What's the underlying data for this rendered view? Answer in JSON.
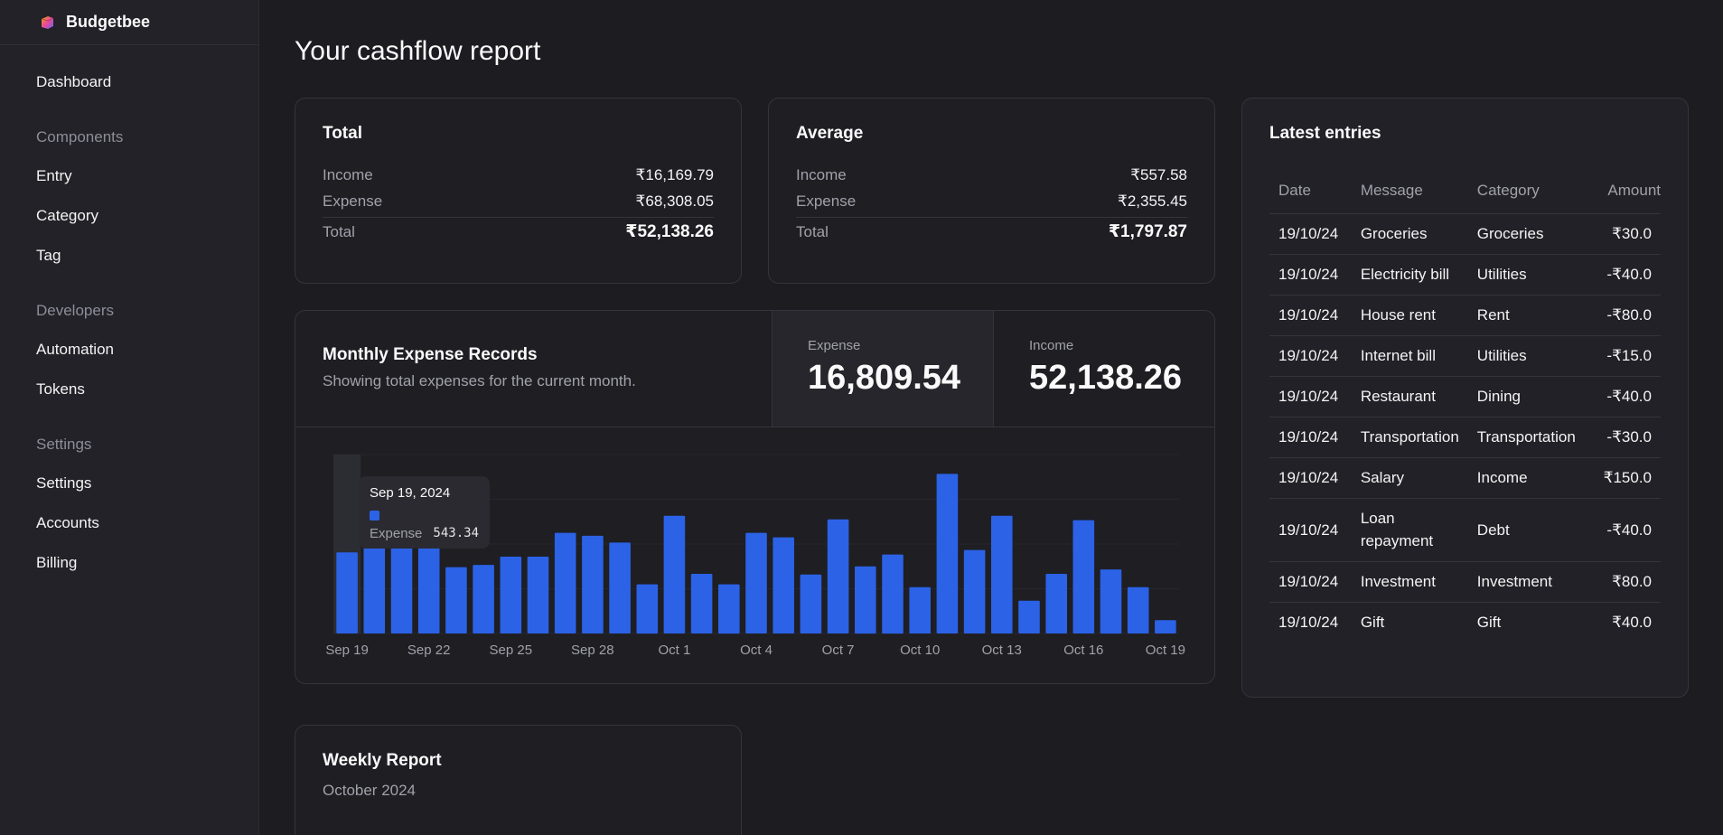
{
  "brand": {
    "name": "Budgetbee"
  },
  "sidebar": {
    "dashboard": "Dashboard",
    "components_heading": "Components",
    "components": [
      "Entry",
      "Category",
      "Tag"
    ],
    "developers_heading": "Developers",
    "developers": [
      "Automation",
      "Tokens"
    ],
    "settings_heading": "Settings",
    "settings": [
      "Settings",
      "Accounts",
      "Billing"
    ]
  },
  "page": {
    "title": "Your cashflow report"
  },
  "total": {
    "title": "Total",
    "income_label": "Income",
    "income": "₹16,169.79",
    "expense_label": "Expense",
    "expense": "₹68,308.05",
    "total_label": "Total",
    "total": "₹52,138.26"
  },
  "average": {
    "title": "Average",
    "income_label": "Income",
    "income": "₹557.58",
    "expense_label": "Expense",
    "expense": "₹2,355.45",
    "total_label": "Total",
    "total": "₹1,797.87"
  },
  "monthly": {
    "title": "Monthly Expense Records",
    "subtitle": "Showing total expenses for the current month.",
    "expense_label": "Expense",
    "expense_value": "16,809.54",
    "income_label": "Income",
    "income_value": "52,138.26",
    "tooltip": {
      "date": "Sep 19, 2024",
      "label": "Expense",
      "value": "543.34"
    }
  },
  "chart_data": {
    "type": "bar",
    "series": [
      {
        "name": "Expense",
        "color": "#2b62e6"
      }
    ],
    "tick_labels": [
      "Sep 19",
      "Sep 22",
      "Sep 25",
      "Sep 28",
      "Oct 1",
      "Oct 4",
      "Oct 7",
      "Oct 10",
      "Oct 13",
      "Oct 16",
      "Oct 19"
    ],
    "x": [
      "Sep 19",
      "Sep 20",
      "Sep 21",
      "Sep 22",
      "Sep 23",
      "Sep 24",
      "Sep 25",
      "Sep 26",
      "Sep 27",
      "Sep 28",
      "Sep 29",
      "Sep 30",
      "Oct 1",
      "Oct 2",
      "Oct 3",
      "Oct 4",
      "Oct 5",
      "Oct 6",
      "Oct 7",
      "Oct 8",
      "Oct 9",
      "Oct 10",
      "Oct 11",
      "Oct 12",
      "Oct 13",
      "Oct 14",
      "Oct 15",
      "Oct 16",
      "Oct 17",
      "Oct 18",
      "Oct 19"
    ],
    "values": [
      543.34,
      585,
      585,
      585,
      445,
      460,
      515,
      515,
      675,
      655,
      610,
      330,
      790,
      400,
      330,
      675,
      645,
      395,
      765,
      450,
      530,
      310,
      1070,
      560,
      790,
      220,
      400,
      760,
      430,
      310,
      90
    ],
    "ylim": [
      0,
      1200
    ],
    "grid": true,
    "highlighted_index": 0
  },
  "latest": {
    "title": "Latest entries",
    "columns": {
      "date": "Date",
      "message": "Message",
      "category": "Category",
      "amount": "Amount"
    },
    "rows": [
      {
        "date": "19/10/24",
        "message": "Groceries",
        "category": "Groceries",
        "amount": "₹30.0"
      },
      {
        "date": "19/10/24",
        "message": "Electricity bill",
        "category": "Utilities",
        "amount": "-₹40.0"
      },
      {
        "date": "19/10/24",
        "message": "House rent",
        "category": "Rent",
        "amount": "-₹80.0"
      },
      {
        "date": "19/10/24",
        "message": "Internet bill",
        "category": "Utilities",
        "amount": "-₹15.0"
      },
      {
        "date": "19/10/24",
        "message": "Restaurant",
        "category": "Dining",
        "amount": "-₹40.0"
      },
      {
        "date": "19/10/24",
        "message": "Transportation",
        "category": "Transportation",
        "amount": "-₹30.0"
      },
      {
        "date": "19/10/24",
        "message": "Salary",
        "category": "Income",
        "amount": "₹150.0"
      },
      {
        "date": "19/10/24",
        "message": "Loan repayment",
        "category": "Debt",
        "amount": "-₹40.0"
      },
      {
        "date": "19/10/24",
        "message": "Investment",
        "category": "Investment",
        "amount": "₹80.0"
      },
      {
        "date": "19/10/24",
        "message": "Gift",
        "category": "Gift",
        "amount": "₹40.0"
      }
    ]
  },
  "weekly": {
    "title": "Weekly Report",
    "subtitle": "October 2024"
  }
}
